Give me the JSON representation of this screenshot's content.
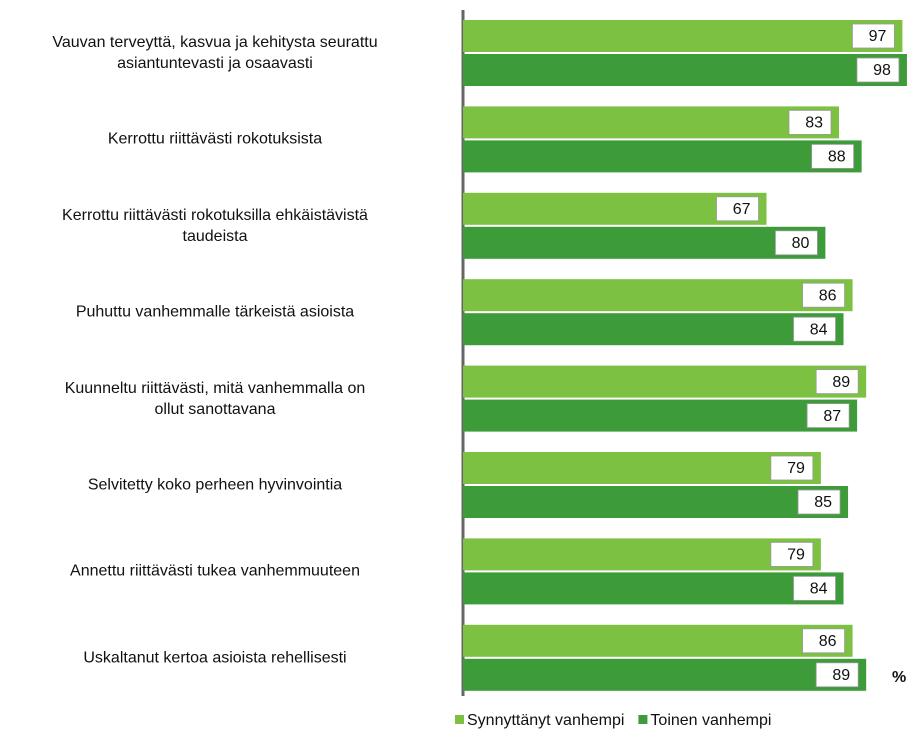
{
  "chart_data": {
    "type": "bar",
    "orientation": "horizontal",
    "categories": [
      "Vauvan terveyttä, kasvua ja kehitysta seurattu\nasiantuntevasti ja osaavasti",
      "Kerrottu riittävästi rokotuksista",
      "Kerrottu riittävästi rokotuksilla ehkäistävistä\ntaudeista",
      "Puhuttu vanhemmalle tärkeistä asioista",
      "Kuunneltu riittävästi, mitä vanhemmalla on\nollut sanottavana",
      "Selvitetty koko perheen hyvinvointia",
      "Annettu riittävästi tukea vanhemmuuteen",
      "Uskaltanut kertoa asioista rehellisesti"
    ],
    "series": [
      {
        "name": "Synnyttänyt vanhempi",
        "color": "#7dc142",
        "values": [
          97,
          83,
          67,
          86,
          89,
          79,
          79,
          86
        ]
      },
      {
        "name": "Toinen vanhempi",
        "color": "#3e9b3a",
        "values": [
          98,
          88,
          80,
          84,
          87,
          85,
          84,
          89
        ]
      }
    ],
    "unit_label": "%",
    "xlim": [
      0,
      100
    ],
    "legend": "bottom"
  }
}
